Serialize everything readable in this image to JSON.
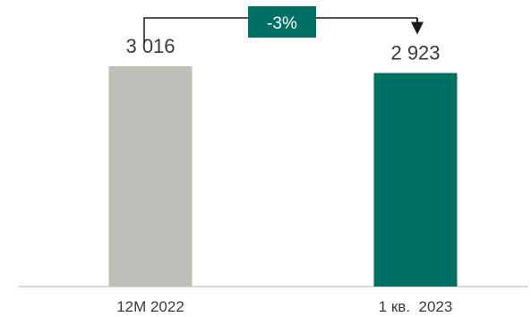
{
  "chart_data": {
    "type": "bar",
    "categories": [
      "12M 2022",
      "1 кв.  2023"
    ],
    "values": [
      3016,
      2923
    ],
    "value_labels": [
      "3 016",
      "2 923"
    ],
    "bar_colors": [
      "#bfbfba",
      "#007065"
    ],
    "ylim": [
      0,
      3800
    ],
    "title": "",
    "xlabel": "",
    "ylabel": "",
    "grid": false,
    "legend": false,
    "annotation": {
      "text": "-3%",
      "box_color": "#007065",
      "text_color": "#ffffff",
      "arrow_color": "#1a1a1a"
    },
    "baseline_color": "#cfcfcf"
  }
}
